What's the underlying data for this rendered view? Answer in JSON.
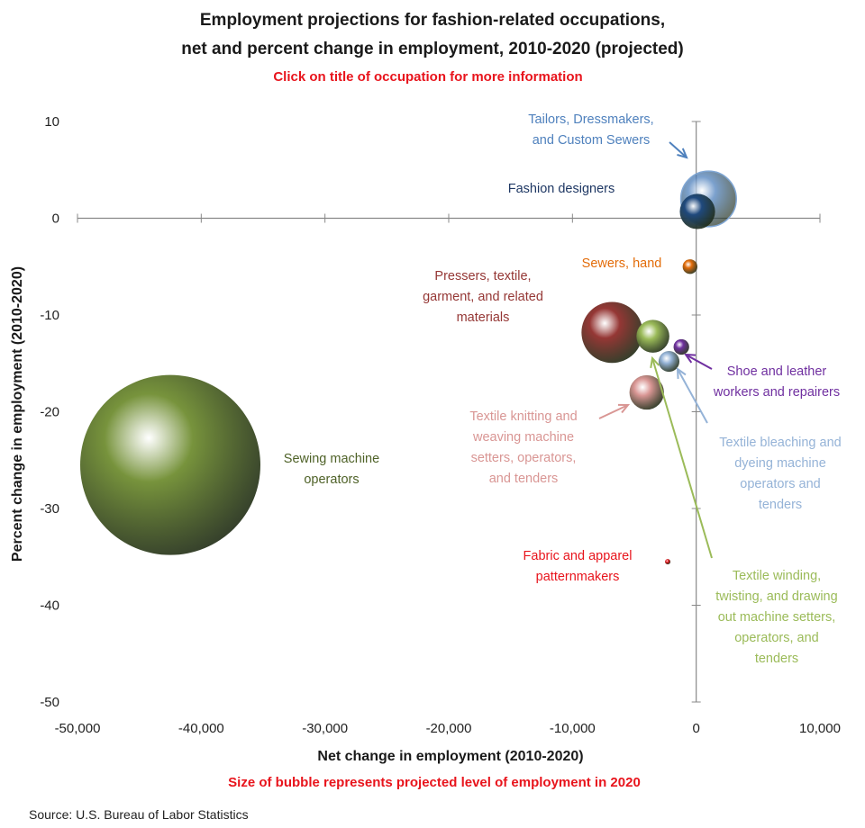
{
  "chart_data": {
    "type": "bubble",
    "title_lines": [
      "Employment projections for fashion-related occupations,",
      "net and percent change in employment, 2010-2020 (projected)"
    ],
    "subtitle": "Click on title of occupation for more information",
    "xlabel": "Net change in employment (2010-2020)",
    "ylabel": "Percent change in employment (2010-2020)",
    "size_note": "Size of bubble represents projected level of employment in 2020",
    "source": "Source: U.S. Bureau of Labor Statistics",
    "xlim": [
      -50000,
      10000
    ],
    "ylim": [
      -50,
      10
    ],
    "x_ticks": [
      -50000,
      -40000,
      -30000,
      -20000,
      -10000,
      0,
      10000
    ],
    "x_tick_labels": [
      "-50,000",
      "-40,000",
      "-30,000",
      "-20,000",
      "-10,000",
      "0",
      "10,000"
    ],
    "y_ticks": [
      10,
      0,
      -10,
      -20,
      -30,
      -40,
      -50
    ],
    "y_tick_labels": [
      "10",
      "0",
      "-10",
      "-20",
      "-30",
      "-40",
      "-50"
    ],
    "grid": false,
    "series": [
      {
        "name": "Tailors, Dressmakers, and Custom Sewers",
        "label_lines": [
          "Tailors, Dressmakers,",
          "and Custom Sewers"
        ],
        "x": 1000,
        "y": 2,
        "size": 57000,
        "color": "#4f81bd"
      },
      {
        "name": "Fashion designers",
        "label_lines": [
          "Fashion designers"
        ],
        "x": 100,
        "y": 0.7,
        "size": 23000,
        "color": "#1f497d"
      },
      {
        "name": "Sewers, hand",
        "label_lines": [
          "Sewers, hand"
        ],
        "x": -500,
        "y": -5,
        "size": 4000,
        "color": "#e36c09"
      },
      {
        "name": "Pressers, textile, garment, and related materials",
        "label_lines": [
          "Pressers, textile,",
          "garment, and related",
          "materials"
        ],
        "x": -6800,
        "y": -11.8,
        "size": 69000,
        "color": "#953735"
      },
      {
        "name": "Textile winding, twisting, and drawing out machine setters, operators, and tenders",
        "label_lines": [
          "Textile winding,",
          "twisting, and drawing",
          "out machine setters,",
          "operators, and",
          "tenders"
        ],
        "x": -3500,
        "y": -12.2,
        "size": 20000,
        "color": "#9bbb59"
      },
      {
        "name": "Shoe and leather workers and repairers",
        "label_lines": [
          "Shoe and leather",
          "workers and repairers"
        ],
        "x": -1200,
        "y": -13.3,
        "size": 4500,
        "color": "#7030a0"
      },
      {
        "name": "Textile bleaching and dyeing machine operators and tenders",
        "label_lines": [
          "Textile bleaching and",
          "dyeing machine",
          "operators and",
          "tenders"
        ],
        "x": -2200,
        "y": -14.8,
        "size": 8000,
        "color": "#95b3d7"
      },
      {
        "name": "Textile knitting and weaving machine setters, operators, and tenders",
        "label_lines": [
          "Textile knitting and",
          "weaving machine",
          "setters, operators,",
          "and tenders"
        ],
        "x": -4000,
        "y": -18,
        "size": 22000,
        "color": "#d99694"
      },
      {
        "name": "Sewing machine operators",
        "label_lines": [
          "Sewing machine",
          "operators"
        ],
        "x": -42500,
        "y": -25.5,
        "size": 600000,
        "color": "#77933c"
      },
      {
        "name": "Fabric and apparel patternmakers",
        "label_lines": [
          "Fabric and apparel",
          "patternmakers"
        ],
        "x": -2300,
        "y": -35.5,
        "size": 500,
        "color": "#e8141c"
      }
    ]
  }
}
